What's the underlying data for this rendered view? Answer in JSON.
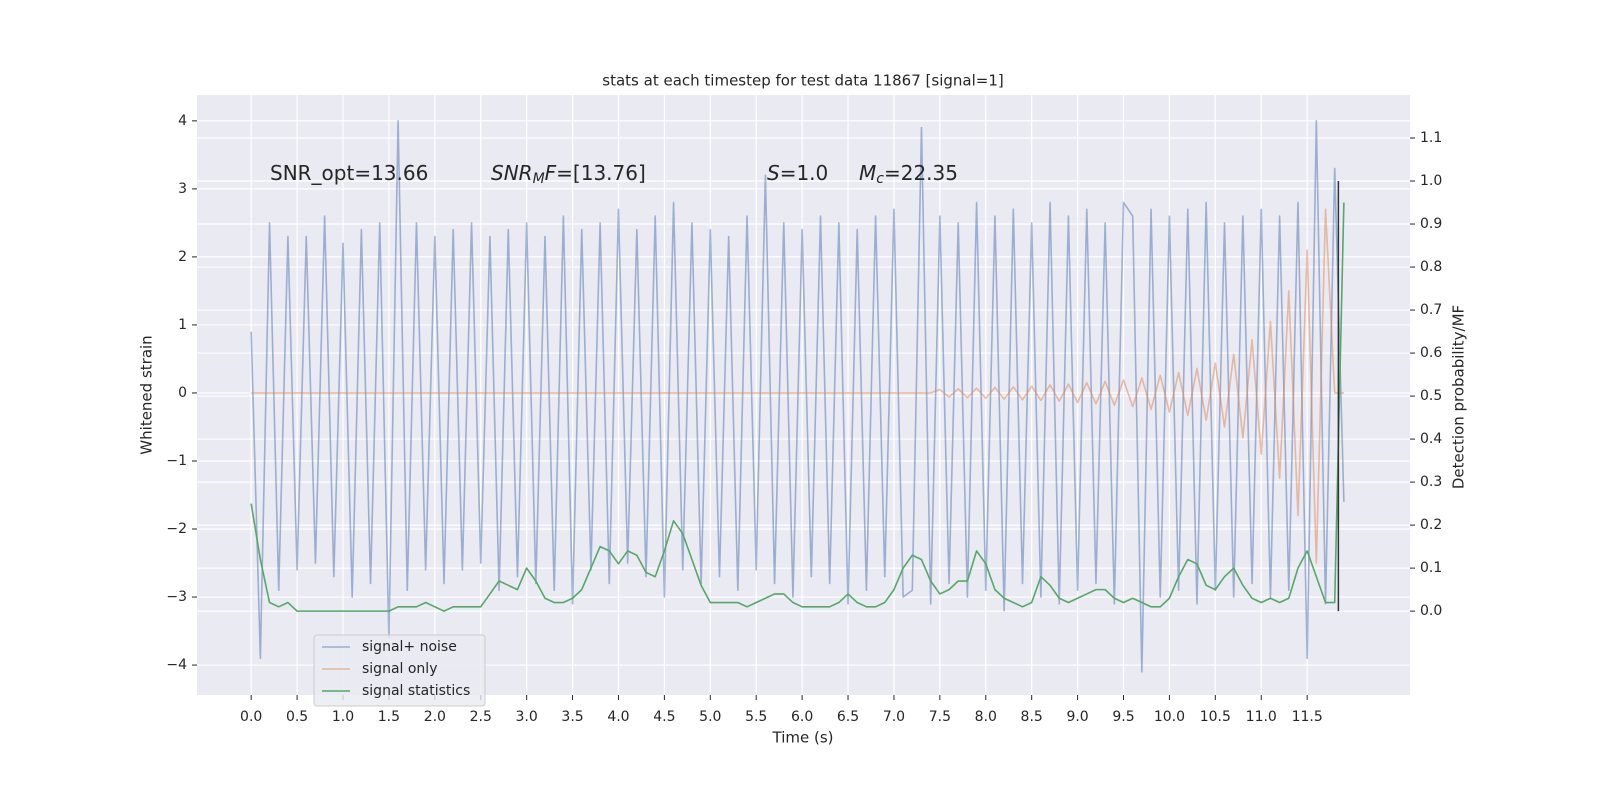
{
  "chart_data": {
    "type": "line",
    "title": "stats at each timestep for test data 11867 [signal=1]",
    "xlabel": "Time (s)",
    "ylabel": "Whitened strain",
    "y2label": "Detection probability/MF",
    "grid": true,
    "legend": "lower left",
    "xlim": [
      -0.59,
      12.62
    ],
    "ylim": [
      -4.44,
      4.38
    ],
    "y2lim": [
      -0.195,
      1.2
    ],
    "xticks": [
      {
        "value": 0,
        "label": "0.0"
      },
      {
        "value": 0.5,
        "label": "0.5"
      },
      {
        "value": 1,
        "label": "1.0"
      },
      {
        "value": 1.5,
        "label": "1.5"
      },
      {
        "value": 2,
        "label": "2.0"
      },
      {
        "value": 2.5,
        "label": "2.5"
      },
      {
        "value": 3,
        "label": "3.0"
      },
      {
        "value": 3.5,
        "label": "3.5"
      },
      {
        "value": 4,
        "label": "4.0"
      },
      {
        "value": 4.5,
        "label": "4.5"
      },
      {
        "value": 5,
        "label": "5.0"
      },
      {
        "value": 5.5,
        "label": "5.5"
      },
      {
        "value": 6,
        "label": "6.0"
      },
      {
        "value": 6.5,
        "label": "6.5"
      },
      {
        "value": 7,
        "label": "7.0"
      },
      {
        "value": 7.5,
        "label": "7.5"
      },
      {
        "value": 8,
        "label": "8.0"
      },
      {
        "value": 8.5,
        "label": "8.5"
      },
      {
        "value": 9,
        "label": "9.0"
      },
      {
        "value": 9.5,
        "label": "9.5"
      },
      {
        "value": 10,
        "label": "10.0"
      },
      {
        "value": 10.5,
        "label": "10.5"
      },
      {
        "value": 11,
        "label": "11.0"
      },
      {
        "value": 11.5,
        "label": "11.5"
      }
    ],
    "yticks": [
      {
        "value": -4,
        "label": "−4"
      },
      {
        "value": -3,
        "label": "−3"
      },
      {
        "value": -2,
        "label": "−2"
      },
      {
        "value": -1,
        "label": "−1"
      },
      0,
      1,
      2,
      3,
      4
    ],
    "y2ticks": [
      {
        "value": 0,
        "label": "0.0"
      },
      {
        "value": 0.1,
        "label": "0.1"
      },
      {
        "value": 0.2,
        "label": "0.2"
      },
      {
        "value": 0.3,
        "label": "0.3"
      },
      {
        "value": 0.4,
        "label": "0.4"
      },
      {
        "value": 0.5,
        "label": "0.5"
      },
      {
        "value": 0.6,
        "label": "0.6"
      },
      {
        "value": 0.7,
        "label": "0.7"
      },
      {
        "value": 0.8,
        "label": "0.8"
      },
      {
        "value": 0.9,
        "label": "0.9"
      },
      {
        "value": 1.0,
        "label": "1.0"
      },
      {
        "value": 1.1,
        "label": "1.1"
      }
    ],
    "x": [
      0.0,
      0.1,
      0.2,
      0.3,
      0.4,
      0.5,
      0.6,
      0.7,
      0.8,
      0.9,
      1.0,
      1.1,
      1.2,
      1.3,
      1.4,
      1.5,
      1.6,
      1.7,
      1.8,
      1.9,
      2.0,
      2.1,
      2.2,
      2.3,
      2.4,
      2.5,
      2.6,
      2.7,
      2.8,
      2.9,
      3.0,
      3.1,
      3.2,
      3.3,
      3.4,
      3.5,
      3.6,
      3.7,
      3.8,
      3.9,
      4.0,
      4.1,
      4.2,
      4.3,
      4.4,
      4.5,
      4.6,
      4.7,
      4.8,
      4.9,
      5.0,
      5.1,
      5.2,
      5.3,
      5.4,
      5.5,
      5.6,
      5.7,
      5.8,
      5.9,
      6.0,
      6.1,
      6.2,
      6.3,
      6.4,
      6.5,
      6.6,
      6.7,
      6.8,
      6.9,
      7.0,
      7.1,
      7.2,
      7.3,
      7.4,
      7.5,
      7.6,
      7.7,
      7.8,
      7.9,
      8.0,
      8.1,
      8.2,
      8.3,
      8.4,
      8.5,
      8.6,
      8.7,
      8.8,
      8.9,
      9.0,
      9.1,
      9.2,
      9.3,
      9.4,
      9.5,
      9.6,
      9.7,
      9.8,
      9.9,
      10.0,
      10.1,
      10.2,
      10.3,
      10.4,
      10.5,
      10.6,
      10.7,
      10.8,
      10.9,
      11.0,
      11.1,
      11.2,
      11.3,
      11.4,
      11.5,
      11.6,
      11.7,
      11.8,
      11.9
    ],
    "series": [
      {
        "name": "signal+ noise",
        "color": "#4c72b0",
        "alpha": 0.5,
        "values": [
          0.9,
          -3.9,
          2.5,
          -2.9,
          2.3,
          -2.6,
          2.3,
          -2.5,
          2.6,
          -2.7,
          2.2,
          -3.0,
          2.4,
          -2.8,
          2.5,
          -3.6,
          4.0,
          -2.9,
          2.5,
          -2.6,
          2.3,
          -2.8,
          2.4,
          -2.6,
          2.5,
          -2.5,
          2.3,
          -2.9,
          2.4,
          -2.7,
          2.5,
          -2.8,
          2.3,
          -2.9,
          2.6,
          -3.1,
          2.4,
          -2.6,
          2.5,
          -2.8,
          2.7,
          -2.5,
          2.4,
          -2.7,
          2.6,
          -3.0,
          2.8,
          -2.6,
          2.5,
          -2.8,
          2.4,
          -2.7,
          2.3,
          -2.9,
          2.6,
          -2.6,
          3.2,
          -2.8,
          2.5,
          -3.0,
          2.4,
          -2.7,
          2.6,
          -2.8,
          2.5,
          -3.1,
          2.4,
          -2.9,
          2.6,
          -2.7,
          2.7,
          -3.0,
          -2.9,
          3.9,
          -3.1,
          2.6,
          -2.8,
          2.5,
          -3.0,
          2.8,
          -2.9,
          2.6,
          -3.2,
          2.7,
          -2.8,
          2.5,
          -3.0,
          2.8,
          -3.1,
          2.6,
          -2.9,
          2.7,
          -2.8,
          2.5,
          -3.1,
          2.8,
          2.6,
          -4.1,
          2.7,
          -3.0,
          2.6,
          -2.9,
          2.7,
          -3.1,
          2.8,
          -2.9,
          2.5,
          -3.0,
          2.6,
          -2.8,
          2.7,
          -3.0,
          2.6,
          -2.9,
          2.8,
          -3.9,
          4.0,
          -3.1,
          3.3,
          -1.6
        ]
      },
      {
        "name": "signal only",
        "color": "#dd8452",
        "alpha": 0.5,
        "values": [
          0,
          0,
          0,
          0,
          0,
          0,
          0,
          0,
          0,
          0,
          0,
          0,
          0,
          0,
          0,
          0,
          0,
          0,
          0,
          0,
          0,
          0,
          0,
          0,
          0,
          0,
          0,
          0,
          0,
          0,
          0,
          0,
          0,
          0,
          0,
          0,
          0,
          0,
          0,
          0,
          0,
          0,
          0,
          0,
          0,
          0,
          0,
          0,
          0,
          0,
          0,
          0,
          0,
          0,
          0,
          0,
          0,
          0,
          0,
          0,
          0,
          0,
          0,
          0,
          0,
          0,
          0,
          0,
          0,
          0,
          0,
          0,
          0,
          0,
          0,
          0.05,
          -0.06,
          0.06,
          -0.07,
          0.07,
          -0.08,
          0.08,
          -0.09,
          0.09,
          -0.1,
          0.1,
          -0.11,
          0.12,
          -0.12,
          0.13,
          -0.14,
          0.15,
          -0.16,
          0.17,
          -0.18,
          0.19,
          -0.2,
          0.22,
          -0.24,
          0.26,
          -0.28,
          0.3,
          -0.33,
          0.36,
          -0.4,
          0.44,
          -0.5,
          0.57,
          -0.66,
          0.78,
          -0.9,
          1.05,
          -1.25,
          1.5,
          -1.8,
          2.1,
          -2.5,
          2.7,
          0,
          0
        ]
      },
      {
        "name": "signal statistics",
        "color": "#55a868",
        "alpha": 1,
        "axis": "y2",
        "values": [
          0.25,
          0.12,
          0.02,
          0.01,
          0.02,
          0.0,
          0.0,
          0.0,
          0.0,
          0.0,
          0.0,
          0.0,
          0.0,
          0.0,
          0.0,
          0.0,
          0.01,
          0.01,
          0.01,
          0.02,
          0.01,
          0.0,
          0.01,
          0.01,
          0.01,
          0.01,
          0.04,
          0.07,
          0.06,
          0.05,
          0.1,
          0.07,
          0.03,
          0.02,
          0.02,
          0.03,
          0.05,
          0.1,
          0.15,
          0.14,
          0.11,
          0.14,
          0.13,
          0.09,
          0.08,
          0.14,
          0.21,
          0.18,
          0.12,
          0.06,
          0.02,
          0.02,
          0.02,
          0.02,
          0.01,
          0.02,
          0.03,
          0.04,
          0.04,
          0.02,
          0.01,
          0.01,
          0.01,
          0.01,
          0.02,
          0.04,
          0.02,
          0.01,
          0.01,
          0.02,
          0.05,
          0.1,
          0.13,
          0.12,
          0.07,
          0.04,
          0.05,
          0.07,
          0.07,
          0.14,
          0.11,
          0.05,
          0.03,
          0.02,
          0.01,
          0.02,
          0.08,
          0.06,
          0.03,
          0.02,
          0.03,
          0.04,
          0.05,
          0.05,
          0.03,
          0.02,
          0.03,
          0.02,
          0.01,
          0.01,
          0.03,
          0.08,
          0.12,
          0.11,
          0.06,
          0.05,
          0.08,
          0.1,
          0.06,
          0.03,
          0.02,
          0.03,
          0.02,
          0.03,
          0.1,
          0.14,
          0.08,
          0.02,
          0.02,
          0.95
        ]
      }
    ],
    "vline": {
      "x": 11.84,
      "ymin": 0,
      "ymax": 1.0,
      "axis": "y2",
      "color": "#333333"
    },
    "annotations": [
      {
        "parts": [
          {
            "text": "SNR_opt=13.66"
          }
        ]
      },
      {
        "parts": [
          {
            "text": "SNR",
            "italic": true
          },
          {
            "text": "M",
            "italic": true,
            "sub": true
          },
          {
            "text": "F",
            "italic": true
          },
          {
            "text": "=[13.76]"
          }
        ]
      },
      {
        "parts": [
          {
            "text": "S",
            "italic": true
          },
          {
            "text": "=1.0"
          }
        ]
      },
      {
        "parts": [
          {
            "text": "M",
            "italic": true
          },
          {
            "text": "c",
            "italic": true,
            "sub": true
          },
          {
            "text": "=22.35"
          }
        ]
      }
    ]
  }
}
